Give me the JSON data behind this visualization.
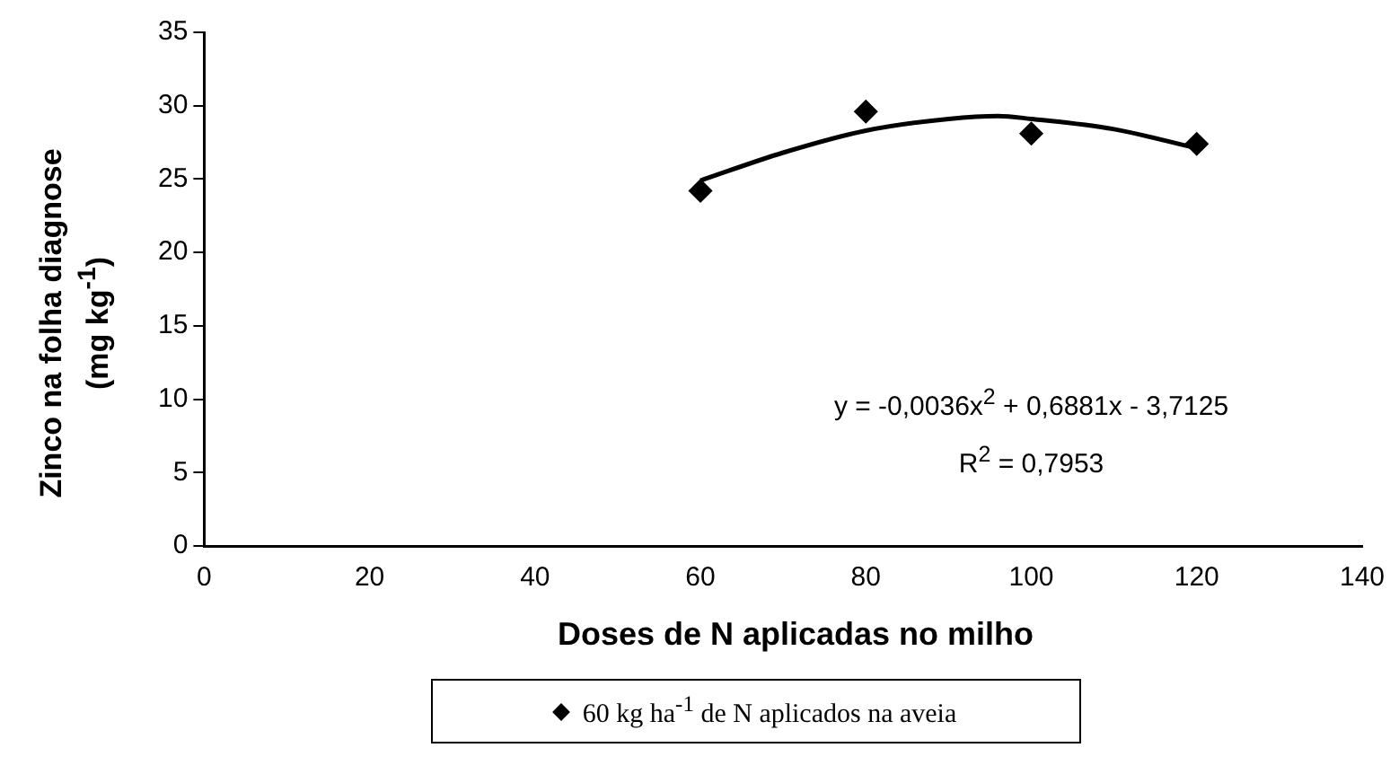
{
  "chart_data": {
    "type": "scatter",
    "xlabel": "Doses de N aplicadas no milho",
    "ylabel": "Zinco na folha diagnose (mg kg$^{-1}$)",
    "x": [
      60,
      80,
      100,
      120
    ],
    "series": [
      {
        "name": "60 kg ha$^{-1}$ de N aplicados na aveia",
        "color": "#000000",
        "values": [
          24.2,
          29.6,
          28.1,
          27.4
        ],
        "marker": "diamond"
      },
      {
        "type": "line",
        "color": "#000000",
        "x": [
          60,
          70,
          80,
          90,
          96,
          100,
          110,
          120
        ],
        "values": [
          24.9,
          26.8,
          28.3,
          29.1,
          29.3,
          29.1,
          28.4,
          27.1
        ],
        "marker": "none"
      }
    ],
    "xlim": [
      0,
      140
    ],
    "xticks": [
      0,
      20,
      40,
      60,
      80,
      100,
      120,
      140
    ],
    "ylim": [
      0,
      35
    ],
    "yticks": [
      0,
      5,
      10,
      15,
      20,
      25,
      30,
      35
    ],
    "annotations": [
      "y = -0,0036x$^{2}$ + 0,6881x - 3,7125",
      "R$^{2}$ = 0,7953"
    ],
    "grid": false,
    "legend": "bottom"
  }
}
